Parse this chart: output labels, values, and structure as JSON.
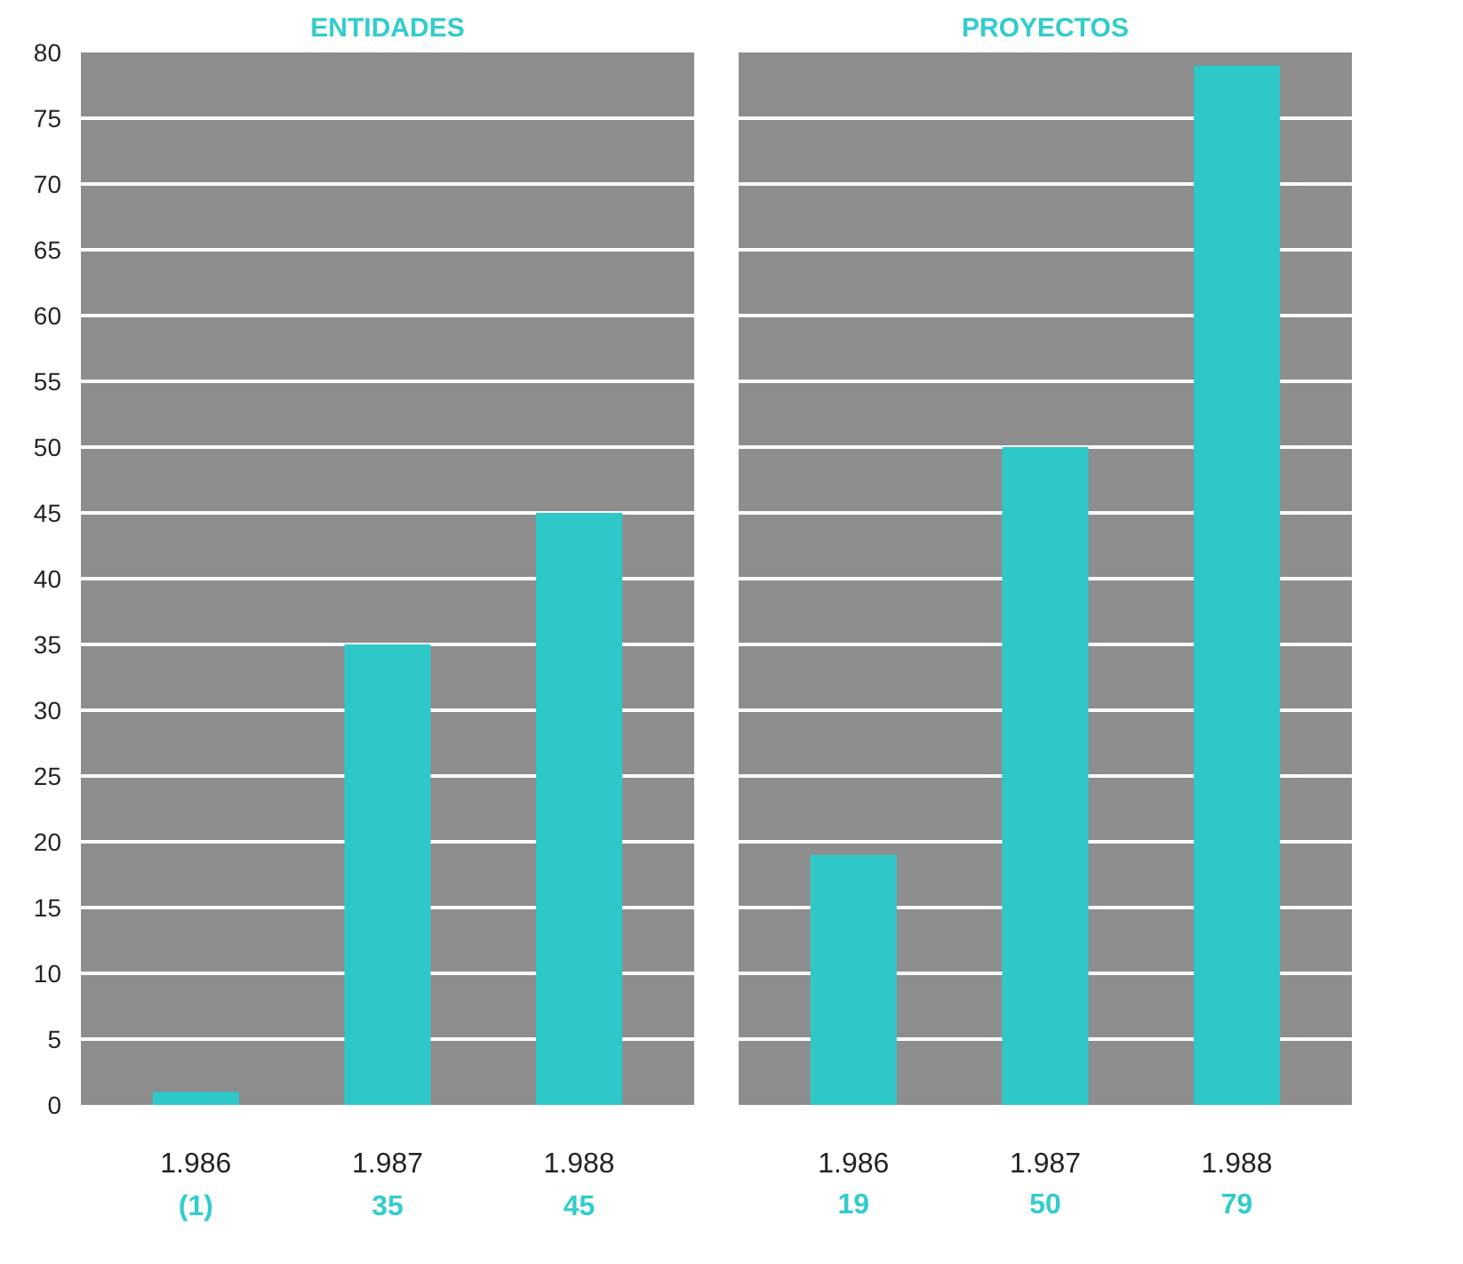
{
  "chart_data": [
    {
      "type": "bar",
      "title": "ENTIDADES",
      "categories": [
        "1.986",
        "1.987",
        "1.988"
      ],
      "values": [
        1,
        35,
        45
      ],
      "value_labels": [
        "(1)",
        "35",
        "45"
      ],
      "color": "#2ec8c8",
      "ylim": [
        0,
        80
      ],
      "yticks": [
        0,
        5,
        10,
        15,
        20,
        25,
        30,
        35,
        40,
        45,
        50,
        55,
        60,
        65,
        70,
        75,
        80
      ],
      "grid": "y"
    },
    {
      "type": "bar",
      "title": "PROYECTOS",
      "categories": [
        "1.986",
        "1.987",
        "1.988"
      ],
      "values": [
        19,
        50,
        79
      ],
      "value_labels": [
        "19",
        "50",
        "79"
      ],
      "color": "#2ec8c8",
      "ylim": [
        0,
        80
      ],
      "yticks": [
        0,
        5,
        10,
        15,
        20,
        25,
        30,
        35,
        40,
        45,
        50,
        55,
        60,
        65,
        70,
        75,
        80
      ],
      "grid": "y",
      "tick_labels": "x"
    }
  ]
}
